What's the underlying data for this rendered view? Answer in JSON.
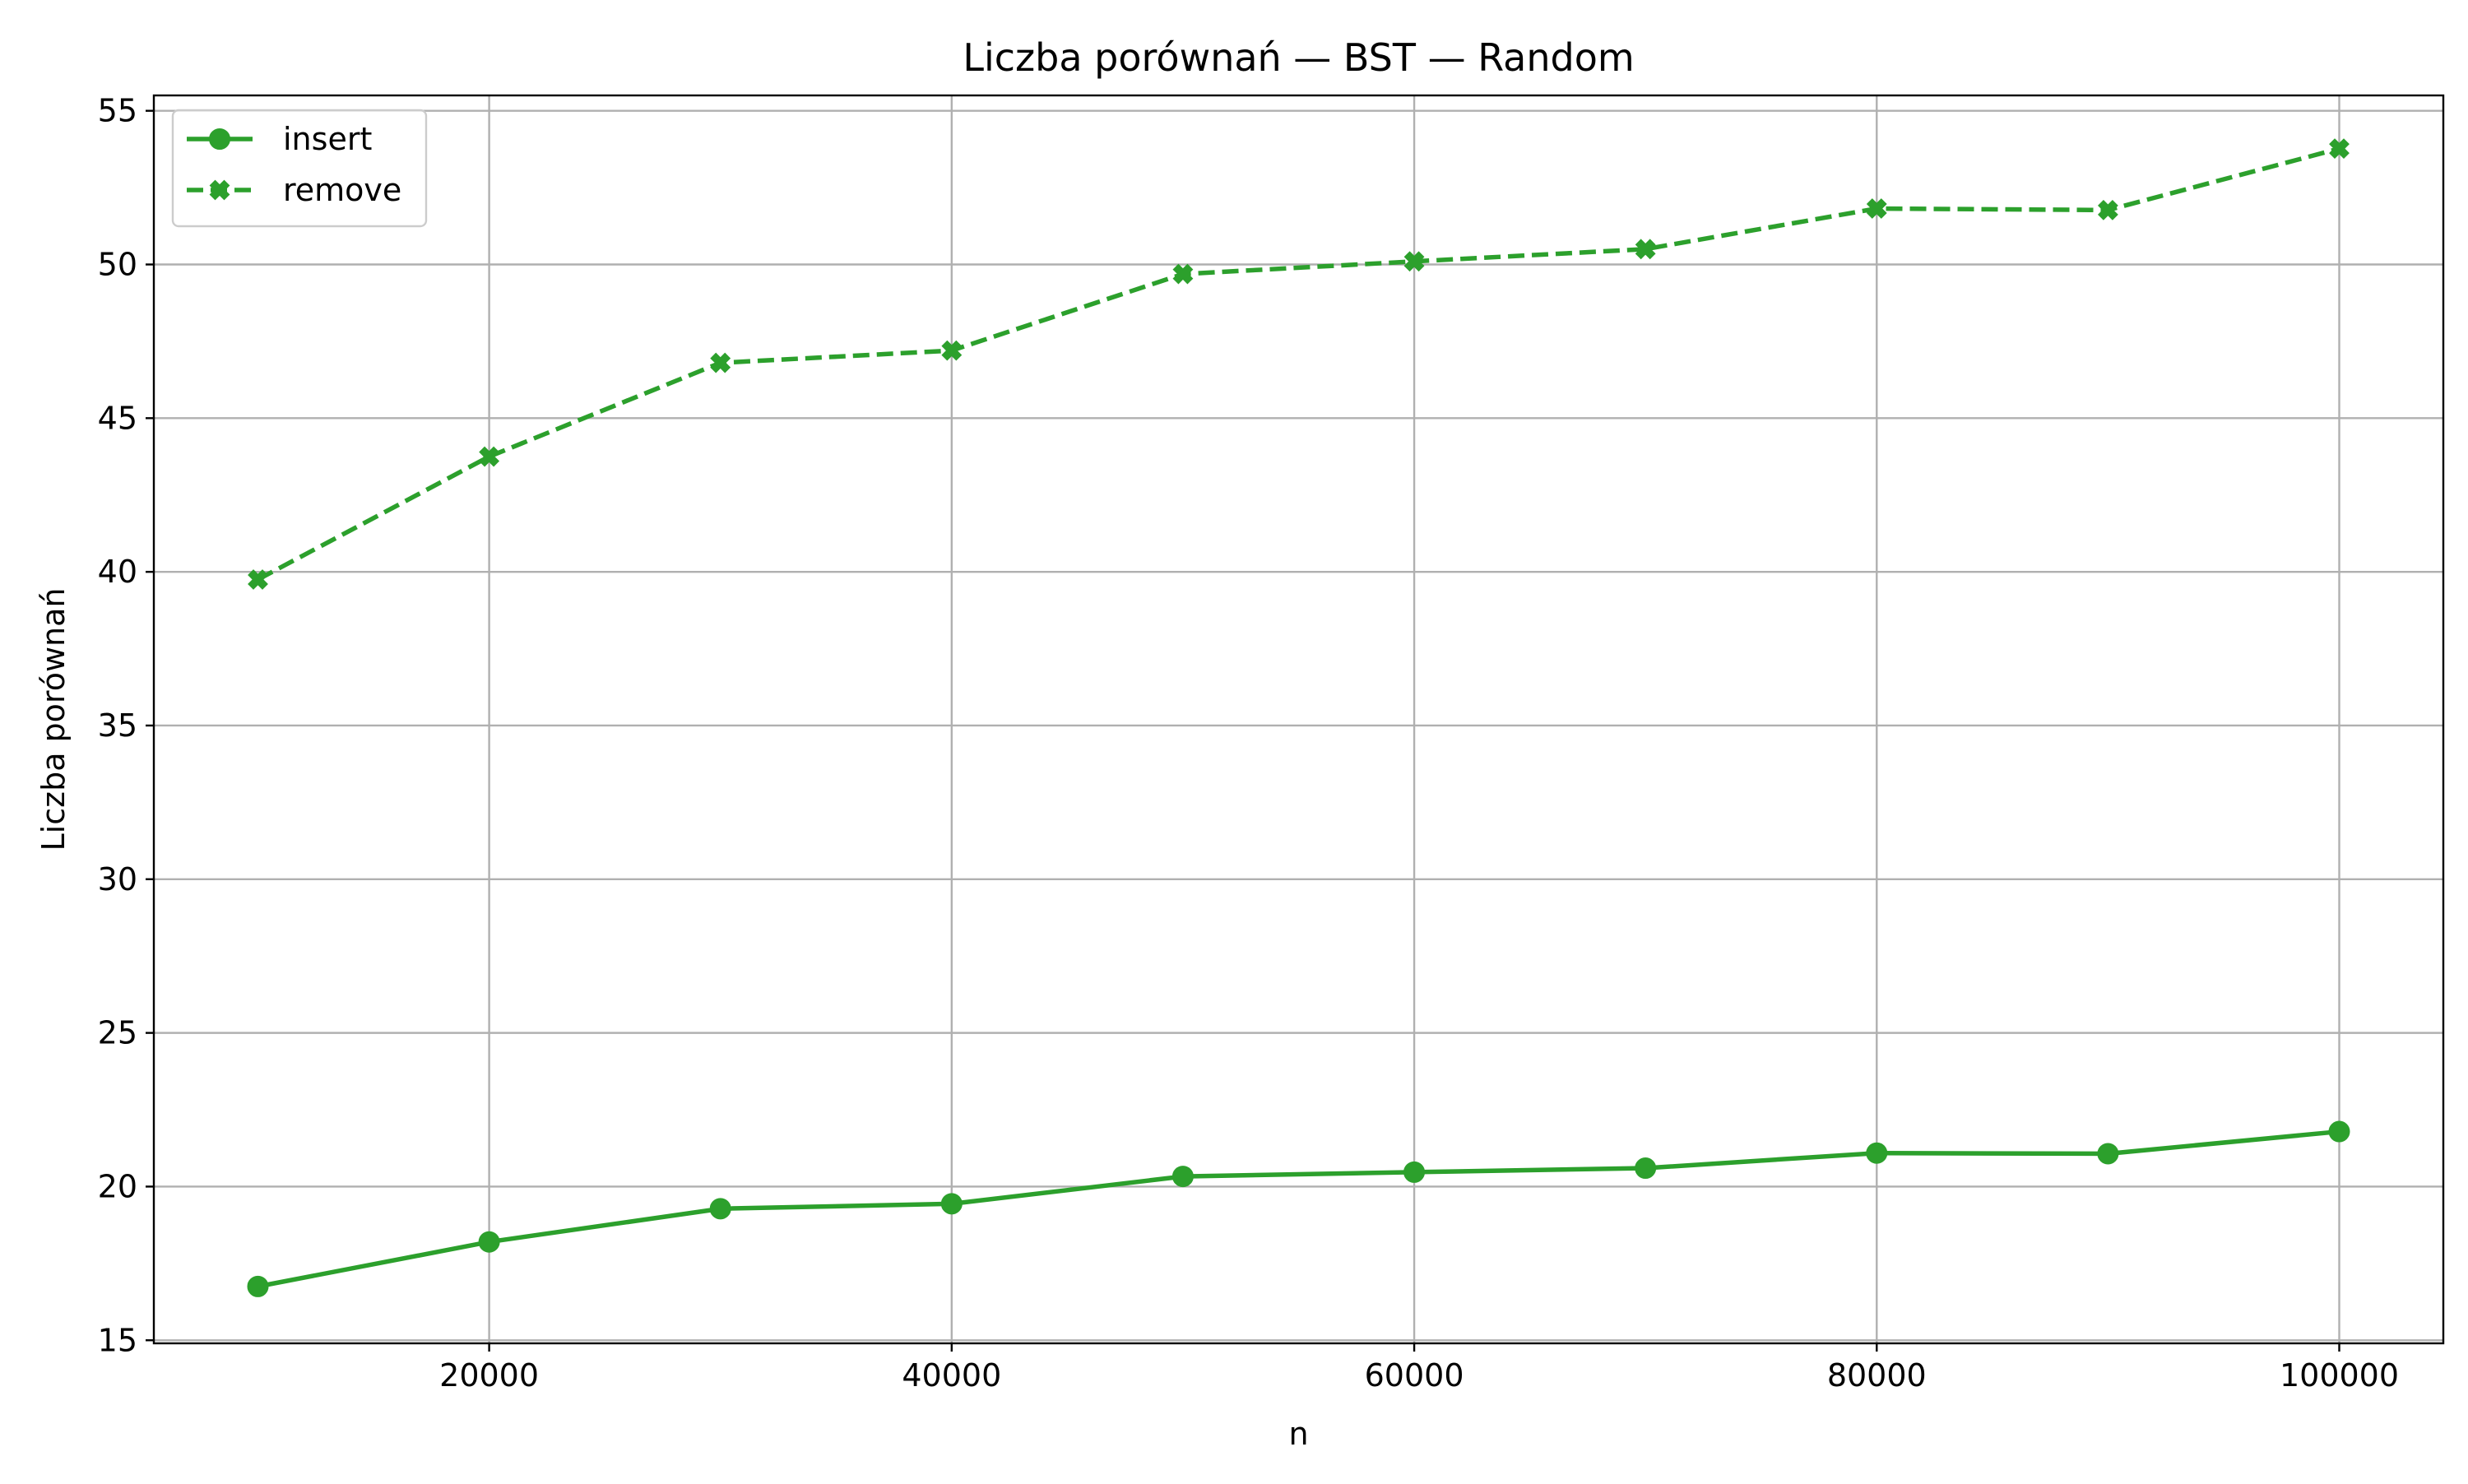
{
  "chart_data": {
    "type": "line",
    "title": "Liczba porównań — BST — Random",
    "xlabel": "n",
    "ylabel": "Liczba porównań",
    "x": [
      10000,
      20000,
      30000,
      40000,
      50000,
      60000,
      70000,
      80000,
      90000,
      100000
    ],
    "x_ticks": [
      20000,
      40000,
      60000,
      80000,
      100000
    ],
    "y_ticks": [
      15,
      20,
      25,
      30,
      35,
      40,
      45,
      50,
      55
    ],
    "xlim": [
      5500,
      104500
    ],
    "ylim": [
      14.9,
      55.5
    ],
    "grid": true,
    "legend_position": "top-left",
    "series": [
      {
        "name": "insert",
        "values": [
          16.75,
          18.2,
          19.28,
          19.44,
          20.33,
          20.47,
          20.6,
          21.09,
          21.07,
          21.79
        ],
        "color": "#2ca02c",
        "line_style": "solid",
        "marker": "circle"
      },
      {
        "name": "remove",
        "values": [
          39.75,
          43.75,
          46.8,
          47.2,
          49.69,
          50.1,
          50.5,
          51.82,
          51.77,
          53.77
        ],
        "color": "#2ca02c",
        "line_style": "dashed",
        "marker": "x-filled"
      }
    ]
  }
}
